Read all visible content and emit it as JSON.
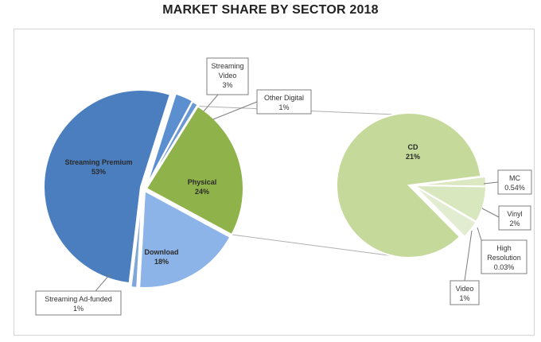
{
  "chart_data": {
    "type": "pie",
    "subtype": "pie-of-pie",
    "title": "MARKET SHARE BY SECTOR 2018",
    "main_pie": [
      {
        "key": "premium",
        "label": "Streaming Premium",
        "value": 53,
        "value_text": "53%",
        "color": "#4a7ebf",
        "label_style": "inside"
      },
      {
        "key": "video",
        "label": "Streaming Video",
        "value": 3,
        "value_text": "3%",
        "color": "#5b8fcf",
        "label_style": "callout"
      },
      {
        "key": "other",
        "label": "Other Digital",
        "value": 1,
        "value_text": "1%",
        "color": "#6a98d4",
        "label_style": "callout"
      },
      {
        "key": "physical",
        "label": "Physical",
        "value": 24,
        "value_text": "24%",
        "color": "#8fb24a",
        "label_style": "inside"
      },
      {
        "key": "download",
        "label": "Download",
        "value": 18,
        "value_text": "18%",
        "color": "#8cb4e8",
        "label_style": "inside"
      },
      {
        "key": "adfunded",
        "label": "Streaming Ad-funded",
        "value": 1,
        "value_text": "1%",
        "color": "#7ea6da",
        "label_style": "callout"
      }
    ],
    "secondary_pie": [
      {
        "key": "cd",
        "label": "CD",
        "value": 21,
        "value_text": "21%",
        "color": "#c4d99a",
        "label_style": "inside"
      },
      {
        "key": "mc",
        "label": "MC",
        "value": 0.54,
        "value_text": "0.54%",
        "color": "#dbe8c2",
        "label_style": "callout"
      },
      {
        "key": "vinyl",
        "label": "Vinyl",
        "value": 2,
        "value_text": "2%",
        "color": "#d9e7be",
        "label_style": "callout"
      },
      {
        "key": "hires",
        "label": "High Resolution",
        "value": 0.03,
        "value_text": "0.03%",
        "color": "#e6efd6",
        "label_style": "callout"
      },
      {
        "key": "video2",
        "label": "Video",
        "value": 1,
        "value_text": "1%",
        "color": "#e2ecd0",
        "label_style": "callout"
      }
    ],
    "secondary_breaks_out": "Physical",
    "legend": "none"
  }
}
